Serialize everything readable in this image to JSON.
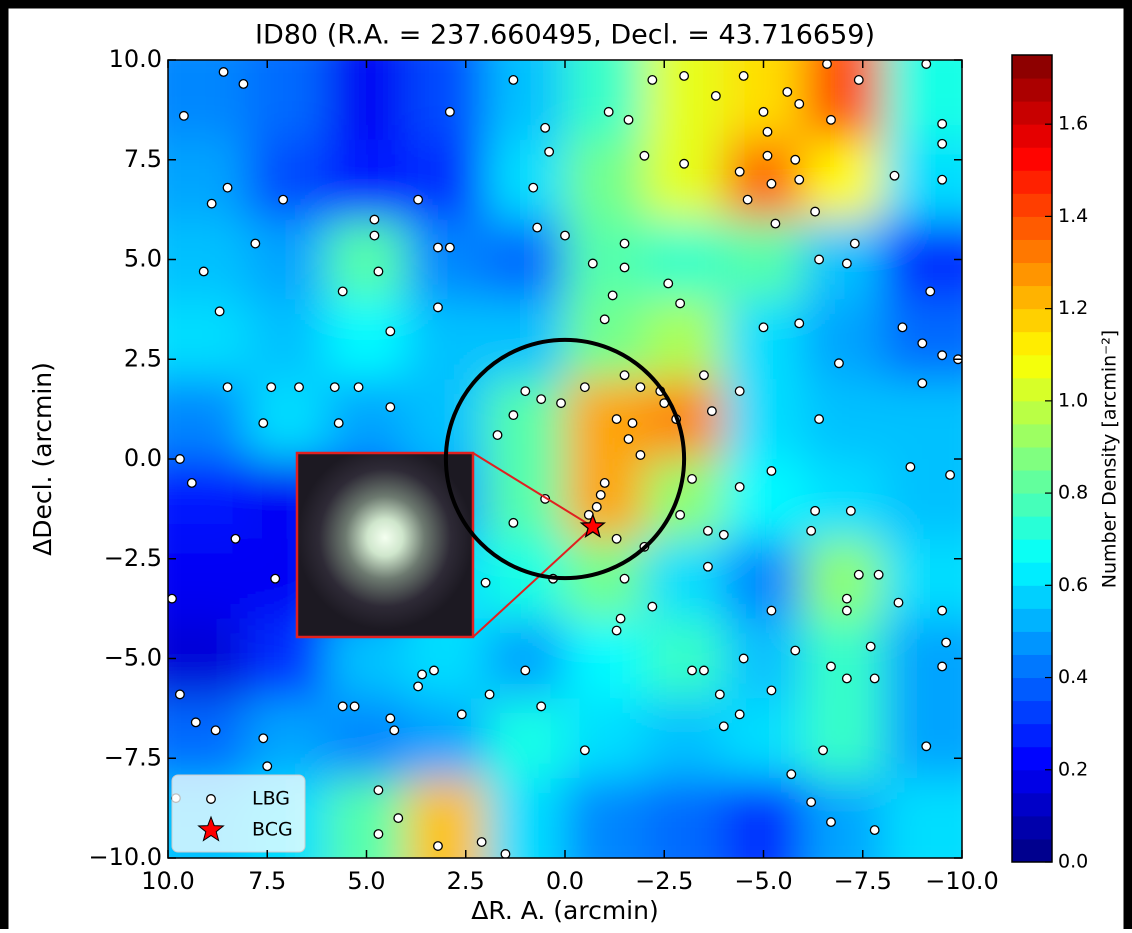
{
  "chart_data": {
    "type": "contour",
    "title": "ID80 (R.A. = 237.660495, Decl. = 43.716659)",
    "xlabel": "ΔR. A. (arcmin)",
    "ylabel": "ΔDecl. (arcmin)",
    "xlim": [
      10,
      -10
    ],
    "ylim": [
      -10,
      10
    ],
    "xticks": [
      {
        "value": 10,
        "label": "10.0"
      },
      7.5,
      {
        "value": 5,
        "label": "5.0"
      },
      2.5,
      {
        "value": 0,
        "label": "0.0"
      },
      {
        "value": -2.5,
        "label": "−2.5"
      },
      {
        "value": -5,
        "label": "−5.0"
      },
      {
        "value": -7.5,
        "label": "−7.5"
      },
      {
        "value": -10,
        "label": "−10.0"
      }
    ],
    "yticks": [
      {
        "value": -10,
        "label": "−10.0"
      },
      {
        "value": -7.5,
        "label": "−7.5"
      },
      {
        "value": -5,
        "label": "−5.0"
      },
      {
        "value": -2.5,
        "label": "−2.5"
      },
      {
        "value": 0,
        "label": "0.0"
      },
      2.5,
      {
        "value": 5,
        "label": "5.0"
      },
      7.5,
      {
        "value": 10,
        "label": "10.0"
      }
    ],
    "colorbar": {
      "label": "Number Density [arcmin⁻²]",
      "lim": [
        0,
        1.75
      ],
      "cmap": "jet",
      "ticks": [
        {
          "value": 0,
          "label": "0.0"
        },
        0.2,
        0.4,
        0.6,
        0.8,
        {
          "value": 1,
          "label": "1.0"
        },
        1.2,
        1.4,
        1.6
      ]
    },
    "density": {
      "x": [
        9,
        7,
        5,
        3,
        1,
        -1,
        -3,
        -5,
        -7,
        -9
      ],
      "y": [
        9,
        7,
        5,
        3,
        1,
        -1,
        -3,
        -5,
        -7,
        -9
      ],
      "values": [
        [
          0.45,
          0.4,
          0.2,
          0.35,
          0.55,
          0.75,
          1.05,
          1.15,
          1.4,
          0.7
        ],
        [
          0.5,
          0.35,
          0.25,
          0.3,
          0.6,
          0.85,
          1.05,
          1.35,
          1.1,
          0.6
        ],
        [
          0.55,
          0.5,
          0.8,
          0.45,
          0.4,
          0.8,
          0.75,
          0.8,
          0.55,
          0.3
        ],
        [
          0.6,
          0.55,
          0.65,
          0.55,
          0.55,
          0.85,
          0.95,
          0.6,
          0.5,
          0.4
        ],
        [
          0.45,
          0.6,
          0.5,
          0.55,
          0.8,
          1.25,
          1.3,
          0.6,
          0.55,
          0.55
        ],
        [
          0.25,
          0.2,
          0.35,
          0.5,
          0.8,
          1.25,
          0.9,
          0.65,
          0.6,
          0.55
        ],
        [
          0.2,
          0.2,
          0.35,
          0.6,
          0.7,
          0.85,
          0.6,
          0.45,
          0.9,
          0.6
        ],
        [
          0.15,
          0.3,
          0.55,
          0.6,
          0.5,
          0.65,
          0.75,
          0.55,
          0.75,
          0.5
        ],
        [
          0.4,
          0.5,
          0.45,
          0.5,
          0.7,
          0.6,
          0.55,
          0.6,
          0.75,
          0.5
        ],
        [
          0.55,
          0.6,
          0.8,
          1.2,
          0.6,
          0.45,
          0.4,
          0.3,
          0.5,
          0.6
        ]
      ]
    },
    "circle": {
      "x": 0,
      "y": 0,
      "radius": 3
    },
    "legend": "lower left",
    "series": [
      {
        "name": "LBG",
        "type": "scatter",
        "color": "#ffffff",
        "x": [
          8.6,
          8.1,
          9.6,
          8.9,
          8.5,
          9.1,
          8.7,
          7.1,
          7.8,
          4.8,
          4.8,
          4.7,
          5.6,
          4.4,
          2.9,
          3.2,
          2.9,
          3.2,
          3.7,
          1.3,
          0.5,
          0.4,
          0.8,
          0.7,
          0.0,
          -0.7,
          -1.5,
          -1.5,
          -1.2,
          -1.0,
          -2.6,
          -2.9,
          -1.1,
          -1.6,
          -2.0,
          -3.0,
          -2.2,
          -3.0,
          -3.8,
          -4.5,
          -5.0,
          -4.4,
          -5.2,
          -4.6,
          -5.1,
          -5.1,
          -5.8,
          -5.6,
          -5.9,
          -6.6,
          -7.4,
          -6.7,
          -5.9,
          -6.3,
          -5.3,
          -7.3,
          -7.1,
          -6.4,
          -9.1,
          -9.5,
          -9.5,
          -9.5,
          -8.3,
          -9.2,
          -8.5,
          -9.5,
          -9.0,
          -9.0,
          -5.0,
          -5.9,
          -6.9,
          1.7,
          1.3,
          1.0,
          0.6,
          0.1,
          -0.5,
          -1.5,
          -1.9,
          -2.4,
          -1.3,
          -1.7,
          -1.6,
          -1.9,
          -2.5,
          -2.8,
          -3.5,
          -3.7,
          -4.4,
          -1.0,
          -0.9,
          -0.8,
          -0.6,
          -1.3,
          -2.0,
          -2.9,
          -3.6,
          -4.0,
          -3.2,
          -4.4,
          -5.2,
          -3.6,
          -1.5,
          -2.2,
          -1.4,
          -1.3,
          0.5,
          1.3,
          2.0,
          0.3,
          6.7,
          7.4,
          8.5,
          9.7,
          9.4,
          8.3,
          7.3,
          5.8,
          5.2,
          4.4,
          5.7,
          7.6,
          9.9,
          9.7,
          9.3,
          8.8,
          7.6,
          7.5,
          9.8,
          5.6,
          5.3,
          4.4,
          4.3,
          3.6,
          3.3,
          3.7,
          2.6,
          1.9,
          0.6,
          1.0,
          -0.5,
          4.7,
          4.7,
          4.2,
          3.2,
          2.1,
          1.5,
          -3.2,
          -3.5,
          -4.5,
          -5.8,
          -6.7,
          -7.1,
          -7.8,
          -3.9,
          -4.4,
          -5.2,
          -4.0,
          -6.5,
          -5.7,
          -6.2,
          -6.7,
          -7.8,
          -9.1,
          -9.5,
          -9.6,
          -7.7,
          -7.4,
          -7.9,
          -8.4,
          -7.1,
          -7.1,
          -5.2,
          -6.3,
          -7.2,
          -6.2,
          -9.5,
          -6.4,
          -8.7,
          -9.7,
          -9.9
        ],
        "y": [
          9.7,
          9.4,
          8.6,
          6.4,
          6.8,
          4.7,
          3.7,
          6.5,
          5.4,
          6.0,
          5.6,
          4.7,
          4.2,
          3.2,
          8.7,
          5.3,
          5.3,
          3.8,
          6.5,
          9.5,
          8.3,
          7.7,
          6.8,
          5.8,
          5.6,
          4.9,
          5.4,
          4.8,
          4.1,
          3.5,
          4.4,
          3.9,
          8.7,
          8.5,
          7.6,
          7.4,
          9.5,
          9.6,
          9.1,
          9.6,
          8.7,
          7.2,
          6.9,
          6.5,
          8.2,
          7.6,
          7.5,
          9.2,
          8.9,
          9.9,
          9.5,
          8.5,
          7.0,
          6.2,
          5.9,
          5.4,
          4.9,
          5.0,
          9.9,
          8.4,
          7.9,
          7.0,
          7.1,
          4.2,
          3.3,
          2.6,
          2.9,
          1.9,
          3.3,
          3.4,
          2.4,
          0.6,
          1.1,
          1.7,
          1.5,
          1.4,
          1.8,
          2.1,
          1.8,
          1.7,
          1.0,
          0.9,
          0.5,
          0.1,
          1.4,
          1.0,
          2.1,
          1.2,
          1.7,
          -0.6,
          -0.9,
          -1.2,
          -1.4,
          -2.0,
          -2.2,
          -1.4,
          -1.8,
          -1.9,
          -0.5,
          -0.7,
          -0.3,
          -2.7,
          -3.0,
          -3.7,
          -4.0,
          -4.3,
          -1.0,
          -1.6,
          -3.1,
          -3.0,
          1.8,
          1.8,
          1.8,
          0.0,
          -0.6,
          -2.0,
          -3.0,
          1.8,
          1.8,
          1.3,
          0.9,
          0.9,
          -3.5,
          -5.9,
          -6.6,
          -6.8,
          -7.0,
          -7.7,
          -8.5,
          -6.2,
          -6.2,
          -6.5,
          -6.8,
          -5.4,
          -5.3,
          -5.7,
          -6.4,
          -5.9,
          -6.2,
          -5.3,
          -7.3,
          -8.3,
          -9.4,
          -9.0,
          -9.7,
          -9.6,
          -9.9,
          -5.3,
          -5.3,
          -5.0,
          -4.8,
          -5.2,
          -5.5,
          -5.5,
          -5.9,
          -6.4,
          -5.8,
          -6.7,
          -7.3,
          -7.9,
          -8.6,
          -9.1,
          -9.3,
          -7.2,
          -3.8,
          -4.6,
          -4.7,
          -2.9,
          -2.9,
          -3.6,
          -3.5,
          -3.8,
          -3.8,
          -1.3,
          -1.3,
          -1.8,
          -5.2,
          1.0,
          -0.2,
          -0.4,
          2.5
        ]
      },
      {
        "name": "BCG",
        "type": "star",
        "color": "#ff0000",
        "x": [
          -0.7
        ],
        "y": [
          -1.7
        ]
      }
    ]
  }
}
